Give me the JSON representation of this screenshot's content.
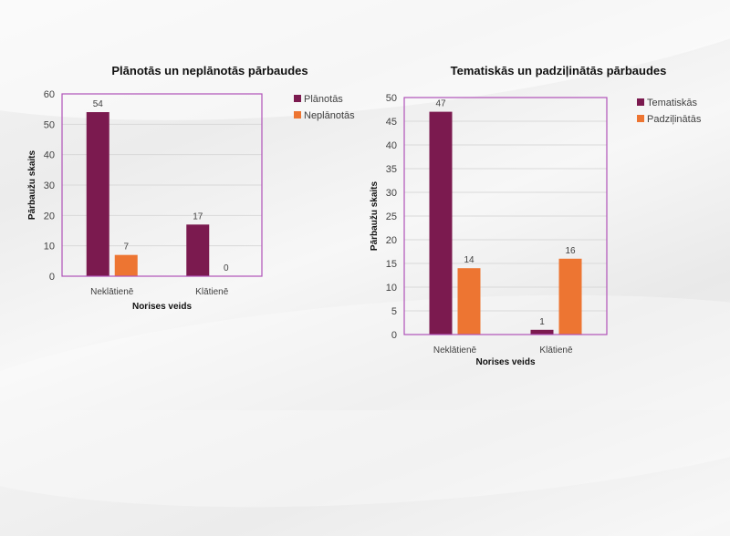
{
  "colors": {
    "series1": "#7b1a4f",
    "series2": "#ed7532",
    "frame": "#b052b8",
    "grid": "#d9d9d9"
  },
  "chart_data": [
    {
      "type": "bar",
      "title": "Plānotās un neplānotās pārbaudes",
      "xlabel": "Norises veids",
      "ylabel": "Pārbaužu skaits",
      "categories": [
        "Neklātienē",
        "Klātienē"
      ],
      "ylim": [
        0,
        60
      ],
      "yticks": [
        0,
        10,
        20,
        30,
        40,
        50,
        60
      ],
      "grid": true,
      "legend": "right",
      "series": [
        {
          "name": "Plānotās",
          "values": [
            54,
            17
          ]
        },
        {
          "name": "Neplānotās",
          "values": [
            7,
            0
          ]
        }
      ]
    },
    {
      "type": "bar",
      "title": "Tematiskās un padziļinātās pārbaudes",
      "xlabel": "Norises veids",
      "ylabel": "Pārbaužu skaits",
      "categories": [
        "Neklātienē",
        "Klātienē"
      ],
      "ylim": [
        0,
        50
      ],
      "yticks": [
        0,
        5,
        10,
        15,
        20,
        25,
        30,
        35,
        40,
        45,
        50
      ],
      "grid": true,
      "legend": "right",
      "series": [
        {
          "name": "Tematiskās",
          "values": [
            47,
            1
          ]
        },
        {
          "name": "Padziļinātās",
          "values": [
            14,
            16
          ]
        }
      ]
    }
  ]
}
